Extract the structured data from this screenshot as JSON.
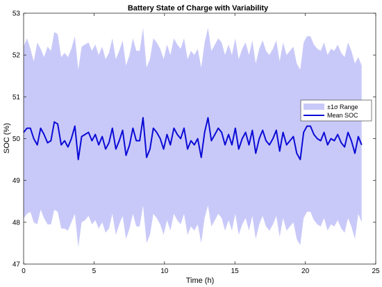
{
  "chart_data": {
    "type": "line",
    "title": "Battery State of Charge with Variability",
    "xlabel": "Time (h)",
    "ylabel": "SOC (%)",
    "xlim": [
      0,
      25
    ],
    "ylim": [
      47,
      53
    ],
    "xticks": [
      0,
      5,
      10,
      15,
      20,
      25
    ],
    "yticks": [
      47,
      48,
      49,
      50,
      51,
      52,
      53
    ],
    "grid": false,
    "legend_position": "right",
    "colors": {
      "band": "#c9c9f9",
      "line": "#0a0ad6"
    },
    "x": [
      0,
      0.24,
      0.48,
      0.72,
      0.97,
      1.21,
      1.45,
      1.7,
      1.94,
      2.18,
      2.42,
      2.67,
      2.91,
      3.15,
      3.39,
      3.64,
      3.88,
      4.12,
      4.36,
      4.61,
      4.85,
      5.09,
      5.33,
      5.58,
      5.82,
      6.06,
      6.3,
      6.55,
      6.79,
      7.03,
      7.27,
      7.52,
      7.76,
      8,
      8.24,
      8.48,
      8.73,
      8.97,
      9.21,
      9.45,
      9.7,
      9.94,
      10.18,
      10.42,
      10.67,
      10.91,
      11.15,
      11.39,
      11.64,
      11.88,
      12.12,
      12.36,
      12.61,
      12.85,
      13.09,
      13.33,
      13.58,
      13.82,
      14.06,
      14.3,
      14.55,
      14.79,
      15.03,
      15.27,
      15.52,
      15.76,
      16,
      16.24,
      16.48,
      16.73,
      16.97,
      17.21,
      17.45,
      17.7,
      17.94,
      18.18,
      18.42,
      18.67,
      18.91,
      19.15,
      19.39,
      19.64,
      19.88,
      20.12,
      20.36,
      20.61,
      20.85,
      21.09,
      21.33,
      21.58,
      21.82,
      22.06,
      22.3,
      22.55,
      22.79,
      23.03,
      23.27,
      23.52,
      23.76,
      24
    ],
    "series": [
      {
        "name": "Mean SOC",
        "values": [
          50.15,
          50.25,
          50.25,
          50.0,
          49.85,
          50.25,
          50.1,
          49.9,
          49.95,
          50.4,
          50.35,
          49.85,
          49.95,
          49.8,
          50.0,
          50.3,
          49.5,
          50.05,
          50.1,
          50.15,
          49.95,
          50.1,
          49.85,
          50.05,
          49.75,
          49.9,
          50.25,
          49.75,
          49.95,
          50.2,
          49.6,
          49.85,
          50.25,
          49.95,
          49.95,
          50.5,
          49.55,
          49.75,
          50.25,
          50.15,
          50.0,
          49.75,
          50.1,
          49.85,
          50.25,
          50.1,
          50.0,
          50.25,
          49.75,
          49.95,
          49.85,
          50.0,
          49.55,
          50.15,
          50.5,
          49.95,
          50.1,
          50.25,
          50.15,
          49.85,
          50.1,
          49.85,
          50.25,
          49.75,
          50.0,
          50.15,
          49.85,
          50.2,
          49.65,
          50.0,
          50.2,
          49.95,
          49.85,
          50.0,
          50.2,
          49.7,
          50.15,
          49.85,
          49.95,
          50.05,
          49.65,
          49.5,
          50.15,
          50.3,
          50.3,
          50.1,
          50.0,
          49.95,
          50.15,
          49.85,
          50.0,
          49.95,
          50.1,
          49.9,
          49.8,
          50.15,
          49.95,
          49.65,
          50.05,
          49.85
        ]
      },
      {
        "name": "±1σ Range",
        "upper": [
          52.2,
          52.4,
          52.15,
          51.85,
          52.3,
          52.15,
          51.95,
          52.2,
          52.1,
          52.55,
          52.5,
          51.95,
          52.05,
          51.95,
          52.15,
          52.45,
          51.65,
          52.2,
          52.25,
          52.3,
          52.1,
          52.25,
          52.0,
          52.2,
          51.9,
          52.05,
          52.4,
          51.9,
          52.1,
          52.35,
          51.75,
          52.0,
          52.4,
          52.1,
          52.1,
          52.65,
          51.7,
          51.9,
          52.4,
          52.3,
          52.15,
          51.9,
          52.25,
          52.0,
          52.4,
          52.25,
          52.15,
          52.4,
          51.9,
          52.1,
          52.0,
          52.15,
          51.7,
          52.3,
          52.65,
          52.1,
          52.25,
          52.4,
          52.3,
          52.0,
          52.25,
          52.0,
          52.4,
          51.9,
          52.15,
          52.3,
          52.0,
          52.35,
          51.8,
          52.15,
          52.35,
          52.1,
          52.0,
          52.15,
          52.35,
          51.85,
          52.3,
          52.0,
          52.1,
          52.2,
          51.8,
          51.65,
          52.3,
          52.45,
          52.45,
          52.25,
          52.15,
          52.1,
          52.3,
          52.0,
          52.15,
          52.1,
          52.25,
          52.05,
          51.95,
          52.3,
          52.1,
          51.8,
          51.95,
          51.75
        ],
        "lower": [
          48.1,
          48.2,
          48.25,
          48.0,
          47.95,
          48.3,
          48.1,
          47.95,
          47.95,
          48.3,
          48.25,
          47.85,
          47.85,
          47.8,
          48.0,
          48.2,
          47.4,
          48.0,
          48.05,
          48.15,
          47.95,
          48.05,
          47.85,
          48.0,
          47.75,
          47.85,
          48.2,
          47.7,
          47.95,
          48.15,
          47.6,
          47.85,
          48.2,
          47.9,
          47.9,
          48.4,
          47.5,
          47.7,
          48.2,
          48.1,
          47.95,
          47.7,
          48.05,
          47.8,
          48.2,
          48.05,
          47.95,
          48.2,
          47.7,
          47.9,
          47.8,
          47.95,
          47.5,
          48.1,
          48.4,
          47.9,
          48.05,
          48.2,
          48.1,
          47.8,
          48.05,
          47.8,
          48.2,
          47.7,
          47.95,
          48.1,
          47.8,
          48.15,
          47.6,
          47.95,
          48.15,
          47.9,
          47.8,
          47.95,
          48.15,
          47.65,
          48.1,
          47.8,
          47.9,
          48.0,
          47.6,
          47.45,
          48.1,
          48.25,
          48.25,
          48.05,
          47.95,
          47.9,
          48.1,
          47.8,
          47.95,
          47.9,
          48.05,
          47.85,
          47.75,
          48.1,
          47.9,
          47.6,
          48.2,
          48.0
        ]
      }
    ]
  }
}
